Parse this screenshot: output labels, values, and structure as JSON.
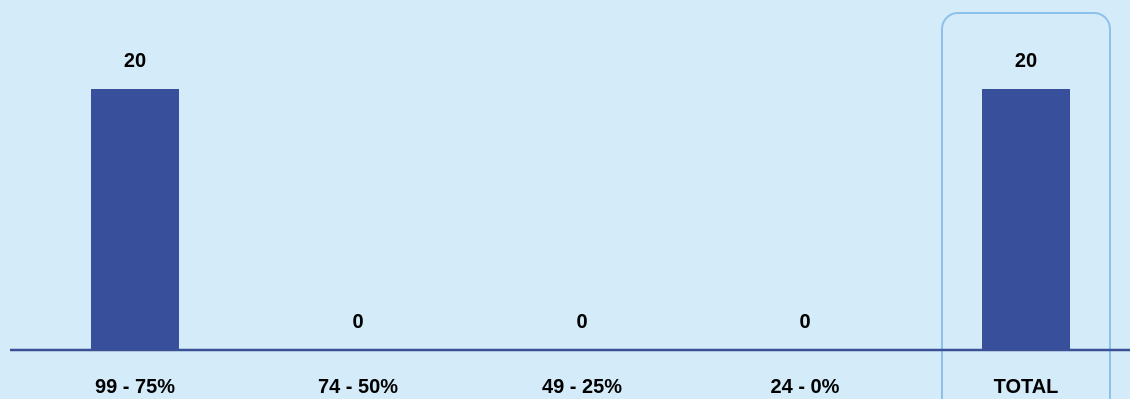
{
  "colors": {
    "background": "#d4ebfa",
    "bar": "#384f9b",
    "axis": "#3b5196",
    "highlight_frame": "#8cc2ea",
    "text": "#000000"
  },
  "chart_data": {
    "type": "bar",
    "categories": [
      "99 - 75%",
      "74 - 50%",
      "49 - 25%",
      "24 - 0%",
      "TOTAL"
    ],
    "values": [
      20,
      0,
      0,
      0,
      20
    ],
    "data_labels": [
      "20",
      "0",
      "0",
      "0",
      "20"
    ],
    "highlighted_category": "TOTAL",
    "title": "",
    "xlabel": "",
    "ylabel": "",
    "ylim": [
      0,
      20
    ],
    "grid": false,
    "legend": "none"
  }
}
